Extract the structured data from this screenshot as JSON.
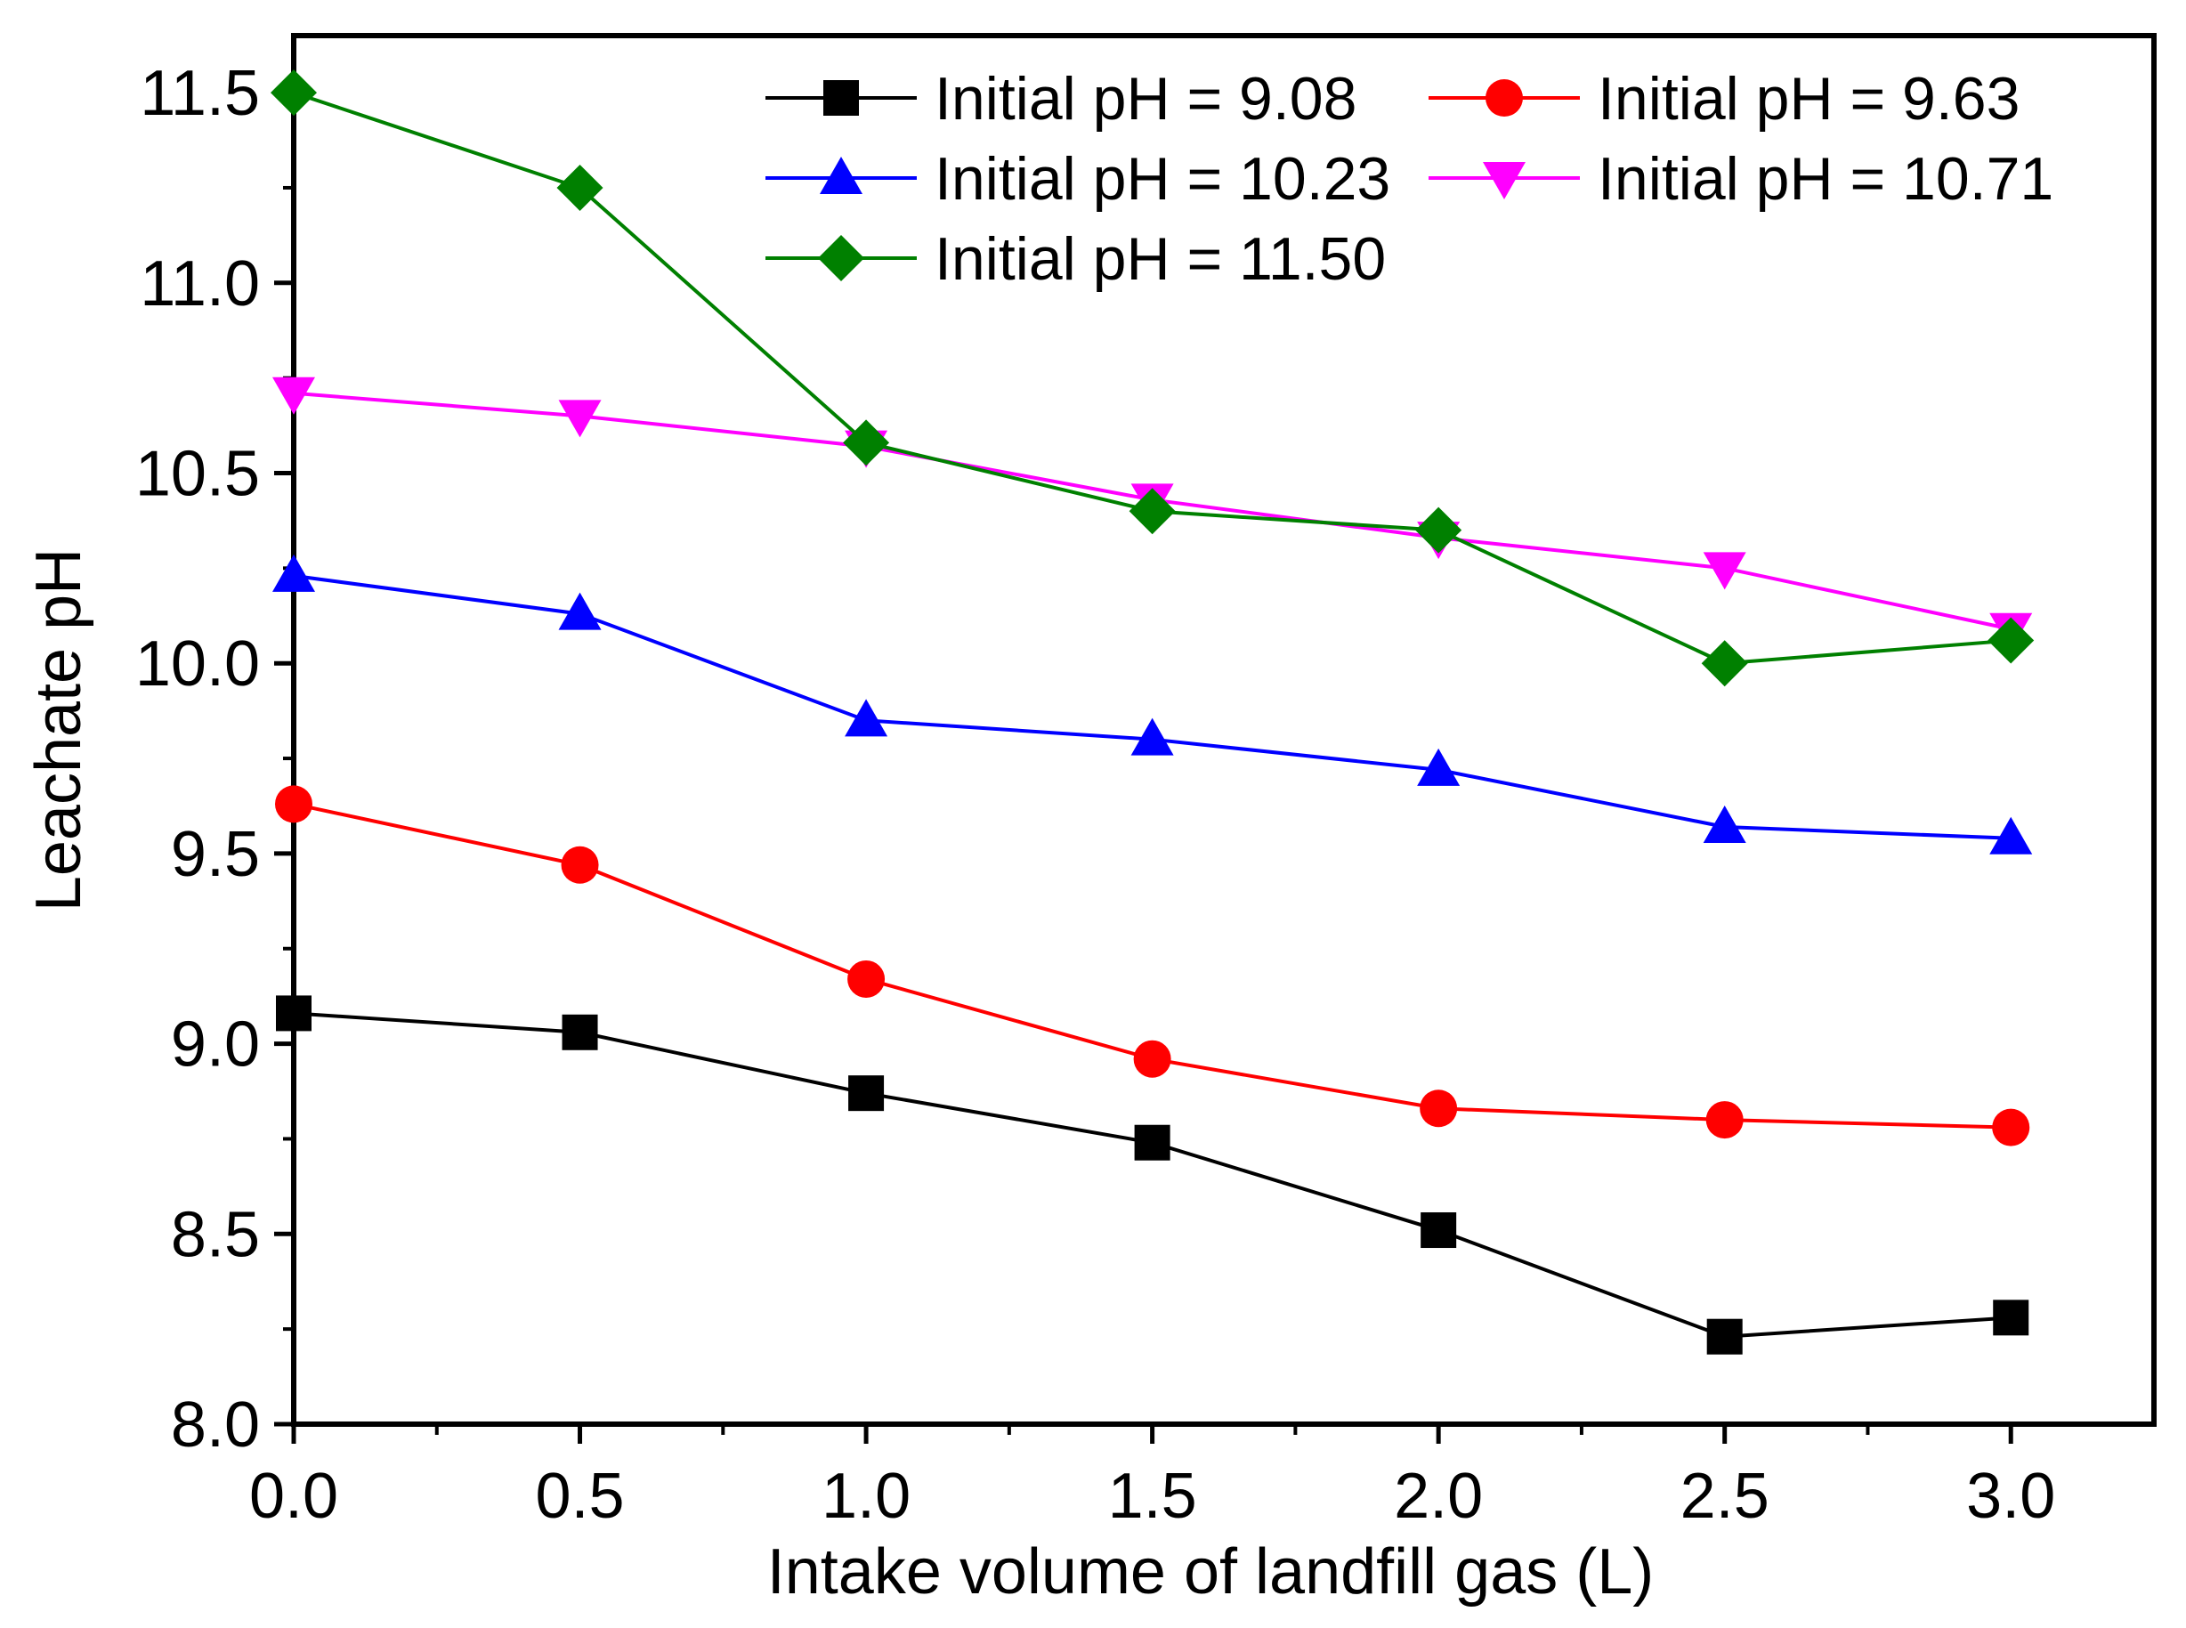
{
  "chart_data": {
    "type": "line",
    "title": "",
    "xlabel": "Intake volume of landfill gas (L)",
    "ylabel": "Leachate pH",
    "xlim": [
      0.0,
      3.25
    ],
    "ylim": [
      8.0,
      11.65
    ],
    "x": [
      0.0,
      0.5,
      1.0,
      1.5,
      2.0,
      2.5,
      3.0
    ],
    "xticks": [
      "0.0",
      "0.5",
      "1.0",
      "1.5",
      "2.0",
      "2.5",
      "3.0"
    ],
    "yticks": [
      "8.0",
      "8.5",
      "9.0",
      "9.5",
      "10.0",
      "10.5",
      "11.0",
      "11.5"
    ],
    "legend_position": "top-right",
    "series": [
      {
        "name": "Initial pH = 9.08",
        "color": "#000000",
        "marker": "square",
        "values": [
          9.08,
          9.03,
          8.87,
          8.74,
          8.51,
          8.23,
          8.28
        ]
      },
      {
        "name": "Initial pH = 9.63",
        "color": "#ff0000",
        "marker": "circle",
        "values": [
          9.63,
          9.47,
          9.17,
          8.96,
          8.83,
          8.8,
          8.78
        ]
      },
      {
        "name": "Initial pH = 10.23",
        "color": "#0000ff",
        "marker": "triangle-up",
        "values": [
          10.23,
          10.13,
          9.85,
          9.8,
          9.72,
          9.57,
          9.54
        ]
      },
      {
        "name": "Initial pH = 10.71",
        "color": "#ff00ff",
        "marker": "triangle-down",
        "values": [
          10.71,
          10.65,
          10.57,
          10.43,
          10.33,
          10.25,
          10.09
        ]
      },
      {
        "name": "Initial pH = 11.50",
        "color": "#008000",
        "marker": "diamond",
        "values": [
          11.5,
          11.25,
          10.58,
          10.4,
          10.35,
          10.0,
          10.06
        ]
      }
    ]
  }
}
